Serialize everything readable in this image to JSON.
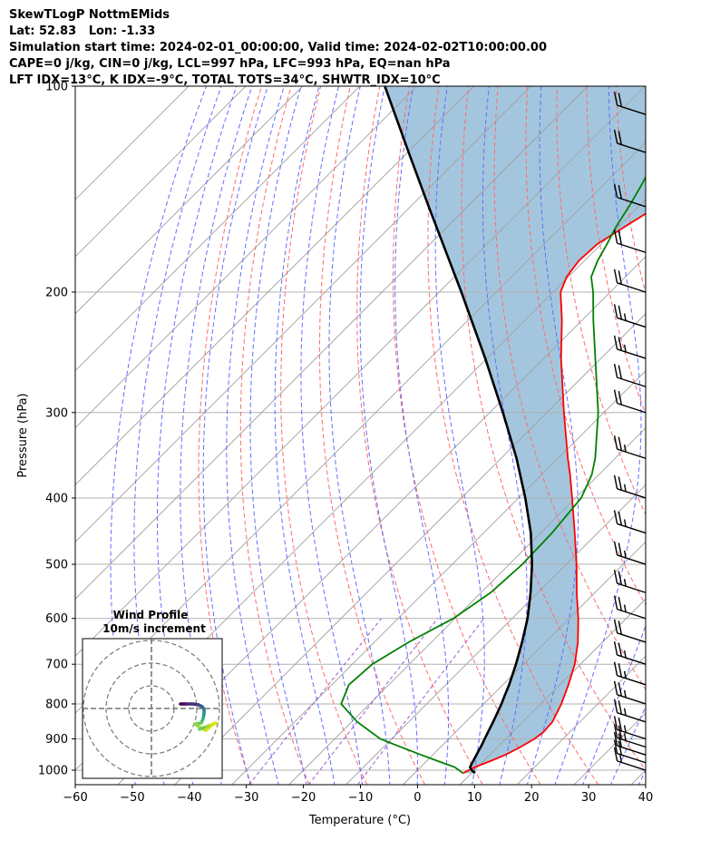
{
  "header": {
    "line1": "SkewTLogP NottmEMids",
    "line2": "Lat: 52.83   Lon: -1.33",
    "line3": "Simulation start time: 2024-02-01_00:00:00, Valid time: 2024-02-02T10:00:00.00",
    "line4": "CAPE=0 j/kg, CIN=0 j/kg, LCL=997 hPa, LFC=993 hPa, EQ=nan hPa",
    "line5": "LFT IDX=13°C, K IDX=-9°C, TOTAL TOTS=34°C, SHWTR_IDX=10°C"
  },
  "chart_data": {
    "type": "skewt",
    "xlabel": "Temperature (°C)",
    "ylabel": "Pressure (hPa)",
    "xlim": [
      -60,
      40
    ],
    "ylim": [
      1050,
      100
    ],
    "yscale": "log",
    "skew_angle_deg": 45,
    "grid": true,
    "x_ticks": [
      -60,
      -50,
      -40,
      -30,
      -20,
      -10,
      0,
      10,
      20,
      30,
      40
    ],
    "x_tick_labels": [
      "−60",
      "−50",
      "−40",
      "−30",
      "−20",
      "−10",
      "0",
      "10",
      "20",
      "30",
      "40"
    ],
    "y_ticks": [
      1000,
      900,
      800,
      700,
      600,
      500,
      400,
      300,
      200,
      100
    ],
    "y_tick_labels": [
      "1000",
      "900",
      "800",
      "700",
      "600",
      "500",
      "400",
      "300",
      "200",
      "100"
    ],
    "series": [
      {
        "role": "temperature",
        "color": "#ff0000",
        "p": [
          1010,
          990,
          970,
          950,
          925,
          900,
          880,
          850,
          800,
          750,
          700,
          650,
          600,
          550,
          500,
          450,
          400,
          370,
          350,
          300,
          250,
          220,
          200,
          190,
          180,
          170,
          160,
          150,
          140,
          130,
          120,
          110,
          105,
          100
        ],
        "t": [
          8.5,
          9.5,
          11.2,
          12.7,
          14,
          15,
          15.4,
          15.2,
          13.6,
          11.5,
          9,
          5.7,
          1.6,
          -3.2,
          -8.2,
          -14,
          -20.6,
          -25,
          -28.3,
          -37,
          -47,
          -53.5,
          -58.7,
          -60.3,
          -61,
          -60.7,
          -58.8,
          -56.8,
          -56,
          -57,
          -58,
          -60,
          -62,
          -64.5
        ]
      },
      {
        "role": "dewpoint",
        "color": "#008000",
        "p": [
          1010,
          990,
          970,
          950,
          920,
          900,
          850,
          800,
          750,
          700,
          650,
          600,
          550,
          500,
          450,
          400,
          370,
          350,
          300,
          250,
          220,
          200,
          190,
          180,
          170,
          160,
          150,
          140,
          130,
          120,
          110,
          100
        ],
        "t": [
          8.5,
          6,
          2,
          -2,
          -8,
          -12,
          -19,
          -25,
          -27,
          -26.5,
          -24,
          -20.3,
          -18.3,
          -17.7,
          -18,
          -19,
          -21.2,
          -23.5,
          -31,
          -41,
          -48,
          -53,
          -56,
          -57.7,
          -59,
          -60.5,
          -61.7,
          -63.2,
          -65,
          -66.5,
          -67.4,
          -67
        ]
      },
      {
        "role": "parcel",
        "color": "#000000",
        "p": [
          1010,
          1000,
          990,
          980,
          960,
          940,
          920,
          900,
          880,
          850,
          820,
          800,
          780,
          750,
          700,
          650,
          600,
          550,
          500,
          450,
          400,
          350,
          300,
          250,
          200,
          175,
          150,
          125,
          100
        ],
        "t": [
          10.6,
          9.5,
          8.7,
          8.4,
          7.9,
          7.4,
          6.9,
          6.3,
          5.7,
          4.8,
          3.8,
          3.1,
          2.3,
          1.1,
          -1.3,
          -4.1,
          -7.3,
          -11.3,
          -16,
          -21.7,
          -28.8,
          -37.3,
          -47.7,
          -60.3,
          -76.1,
          -85.7,
          -96.8,
          -109.8,
          -125.6
        ]
      }
    ],
    "shading": {
      "between": [
        "temperature",
        "parcel"
      ],
      "color": "#a3c6de"
    },
    "reference_lines": {
      "isotherms": {
        "color": "#a0a0a0"
      },
      "dry_adiabats": {
        "color": "#ff6b6b",
        "style": "dashed"
      },
      "moist_adiabats": {
        "color": "#6070ff",
        "style": "dashed"
      },
      "mixing_ratio": {
        "color": "#9b59d0",
        "style": "dashed"
      }
    },
    "wind_barbs": {
      "p": [
        1000,
        975,
        950,
        925,
        900,
        850,
        800,
        750,
        700,
        650,
        600,
        550,
        500,
        450,
        400,
        350,
        300,
        275,
        250,
        225,
        200,
        175,
        150,
        125,
        110
      ],
      "full_barbs": [
        1,
        2,
        2,
        2,
        2,
        2,
        2,
        2,
        2,
        2,
        2,
        2,
        2,
        2,
        2,
        2,
        2,
        2,
        2,
        2,
        2,
        2,
        2,
        2,
        2
      ],
      "half_barbs": [
        1,
        0,
        0,
        1,
        1,
        1,
        1,
        1,
        1,
        0,
        1,
        1,
        1,
        1,
        1,
        1,
        0,
        0,
        1,
        1,
        0,
        0,
        0,
        0,
        0
      ]
    },
    "inset": {
      "title": "Wind Profile",
      "subtitle": "10m/s increment",
      "rings": [
        10,
        20,
        30
      ]
    }
  }
}
